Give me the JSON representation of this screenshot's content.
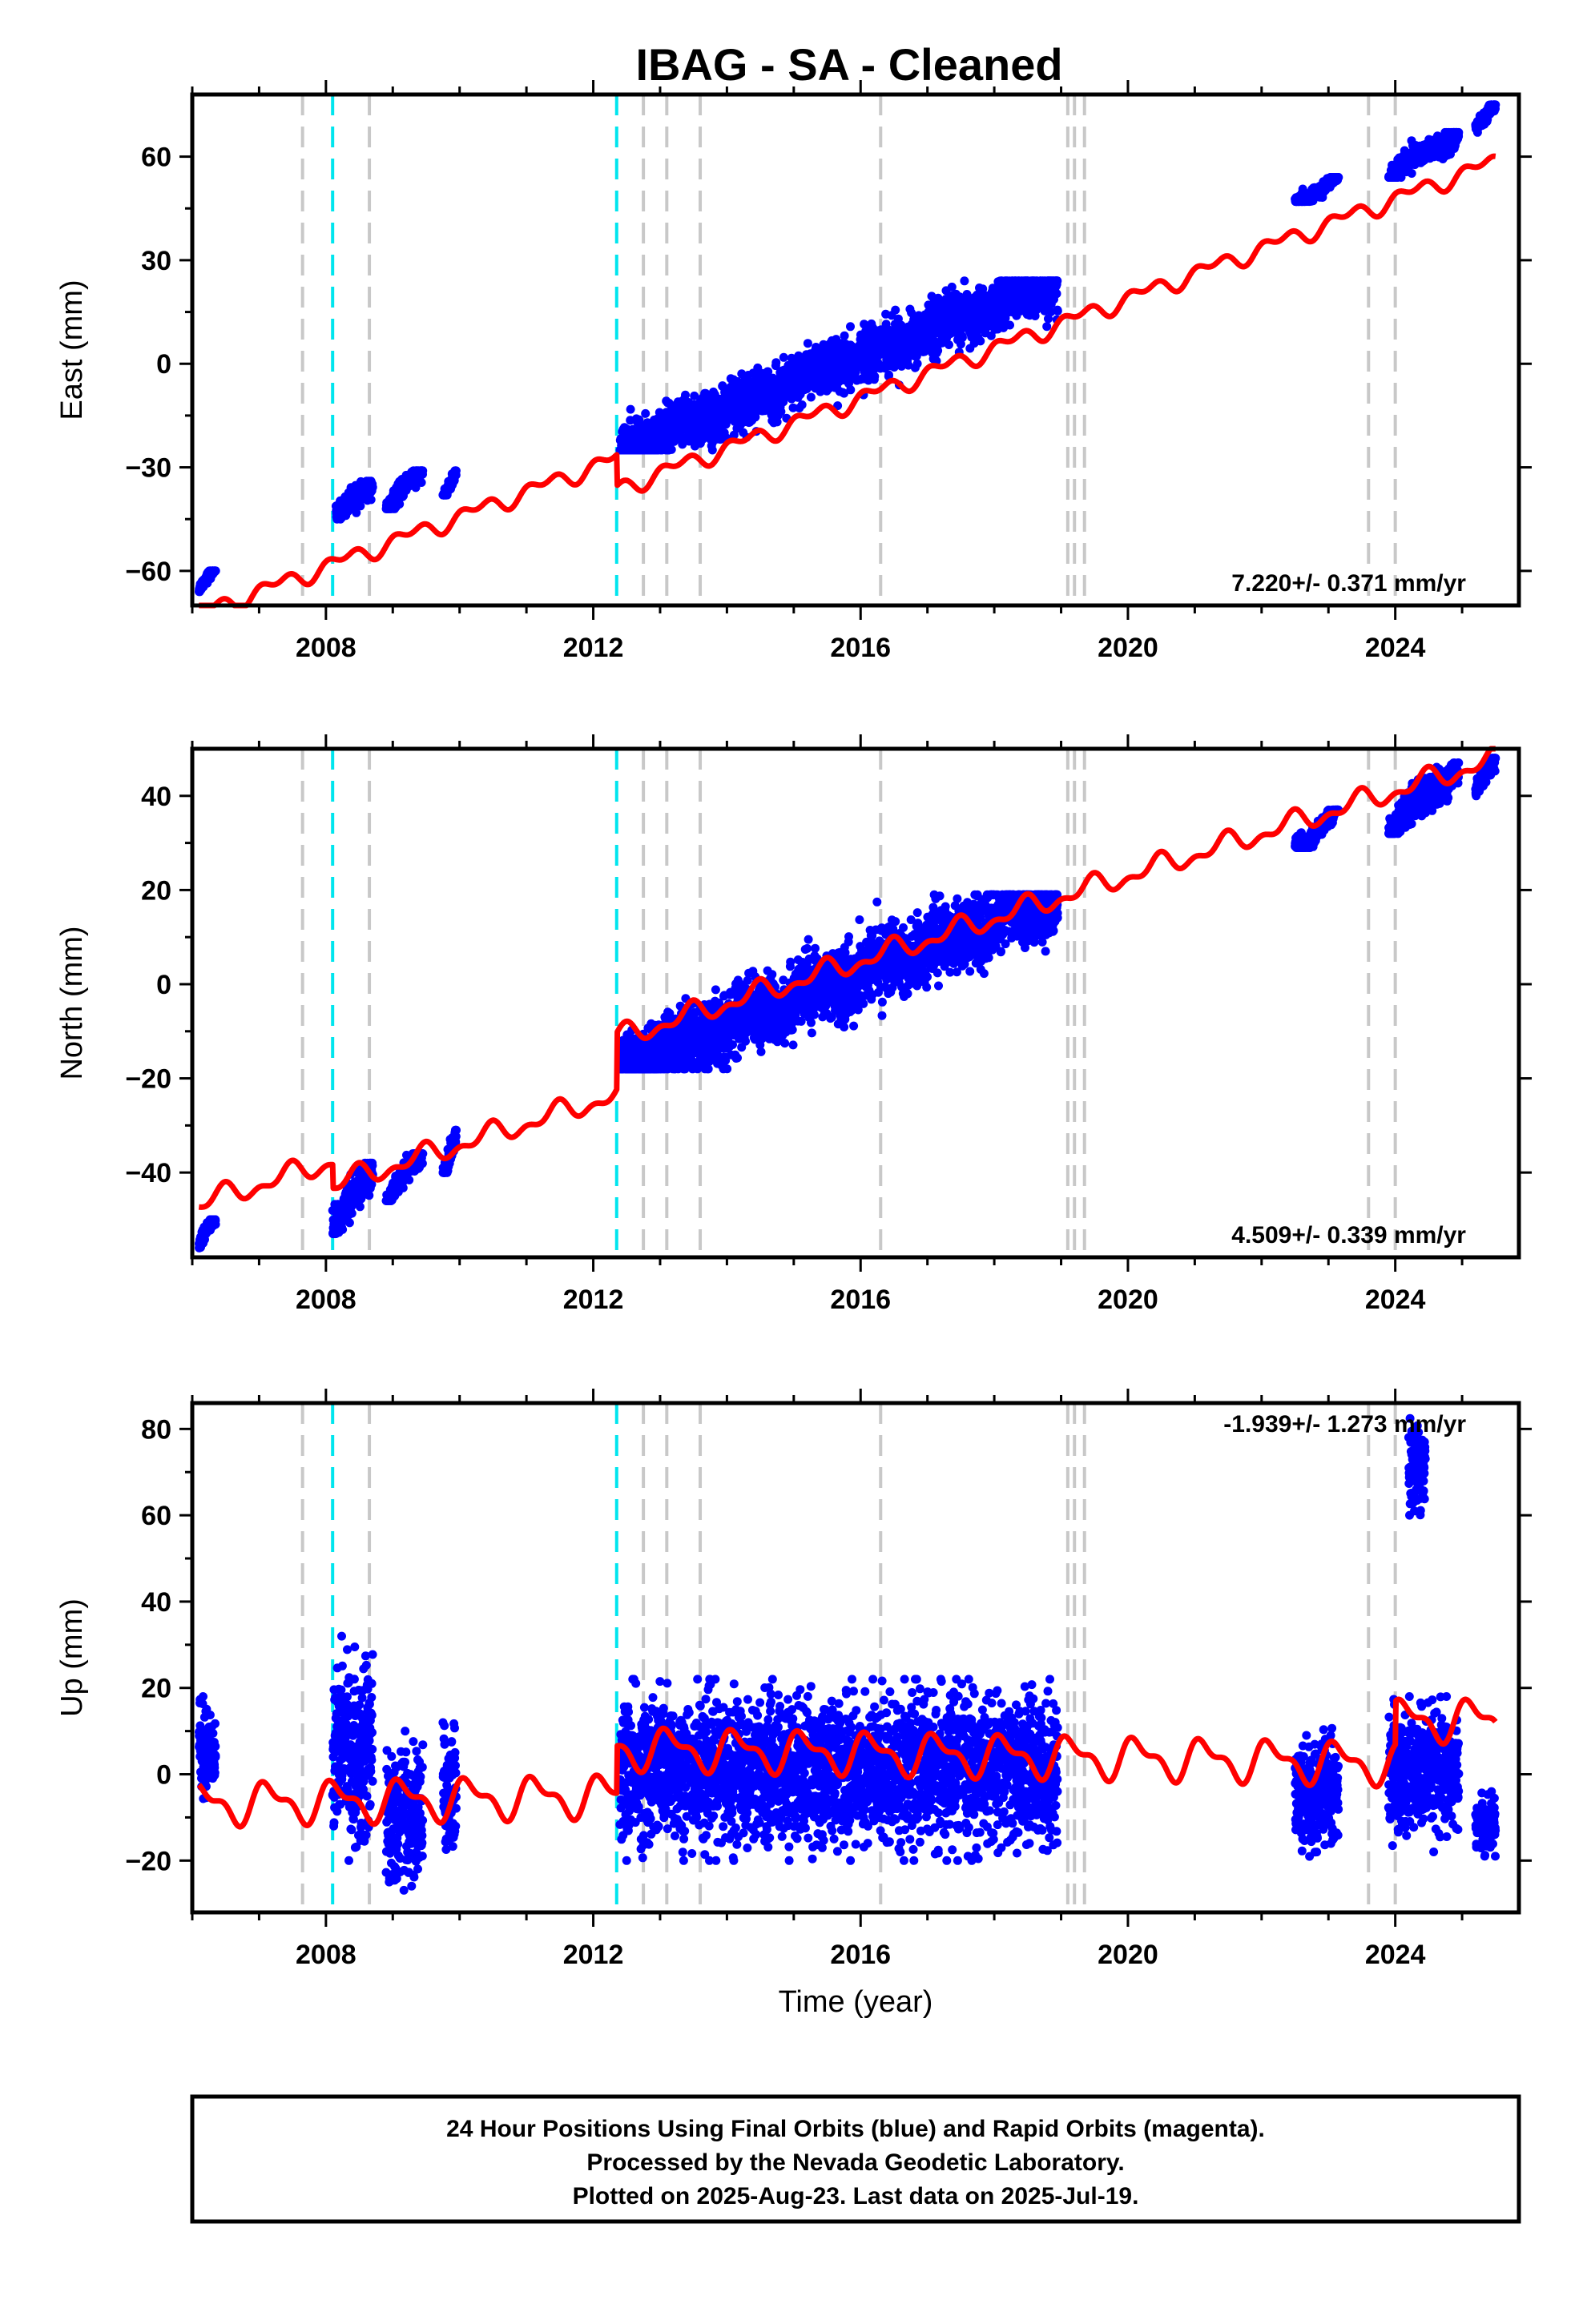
{
  "title": "IBAG  - SA - Cleaned",
  "footer": {
    "lines": [
      "24 Hour Positions Using Final Orbits (blue) and Rapid Orbits (magenta).",
      "Processed by the Nevada Geodetic Laboratory.",
      "Plotted on 2025-Aug-23. Last data on 2025-Jul-19."
    ]
  },
  "colors": {
    "data_points": "#0000ff",
    "model_fit": "#ff0000",
    "equipment_change": "#c8c8c8",
    "antenna_change": "#00e5ee"
  },
  "chart_data": [
    {
      "type": "scatter",
      "name": "east",
      "ylabel": "East (mm)",
      "xlabel": "",
      "xlim": [
        2006.0,
        2025.85
      ],
      "ylim": [
        -70,
        78
      ],
      "yticks": [
        -60,
        -30,
        0,
        30,
        60
      ],
      "xticks": [
        2008,
        2012,
        2016,
        2020,
        2024
      ],
      "rate_label": "7.220+/- 0.371 mm/yr",
      "rate": 7.22,
      "offsets": [
        {
          "year": 2012.35,
          "step": -10
        }
      ],
      "segments": [
        {
          "x": [
            2006.1,
            2006.35
          ],
          "y": [
            -66,
            -60
          ]
        },
        {
          "x": [
            2008.15,
            2008.7
          ],
          "y": [
            -45,
            -34
          ]
        },
        {
          "x": [
            2008.9,
            2009.45
          ],
          "y": [
            -42,
            -31
          ]
        },
        {
          "x": [
            2009.75,
            2009.95
          ],
          "y": [
            -38,
            -31
          ]
        },
        {
          "x": [
            2012.4,
            2018.95
          ],
          "y": [
            -25,
            24
          ]
        },
        {
          "x": [
            2022.5,
            2023.15
          ],
          "y": [
            47,
            54
          ]
        },
        {
          "x": [
            2023.9,
            2024.95
          ],
          "y": [
            54,
            67
          ]
        },
        {
          "x": [
            2025.2,
            2025.5
          ],
          "y": [
            67,
            75
          ]
        }
      ]
    },
    {
      "type": "scatter",
      "name": "north",
      "ylabel": "North (mm)",
      "xlabel": "",
      "xlim": [
        2006.0,
        2025.85
      ],
      "ylim": [
        -58,
        50
      ],
      "yticks": [
        -40,
        -20,
        0,
        20,
        40
      ],
      "xticks": [
        2008,
        2012,
        2016,
        2020,
        2024
      ],
      "rate_label": "4.509+/- 0.339 mm/yr",
      "rate": 4.509,
      "offsets": [
        {
          "year": 2008.1,
          "step": -5
        },
        {
          "year": 2012.35,
          "step": 12
        }
      ],
      "segments": [
        {
          "x": [
            2006.1,
            2006.35
          ],
          "y": [
            -56,
            -50
          ]
        },
        {
          "x": [
            2008.1,
            2008.7
          ],
          "y": [
            -53,
            -38
          ]
        },
        {
          "x": [
            2008.9,
            2009.45
          ],
          "y": [
            -46,
            -36
          ]
        },
        {
          "x": [
            2009.75,
            2009.95
          ],
          "y": [
            -40,
            -31
          ]
        },
        {
          "x": [
            2012.4,
            2018.95
          ],
          "y": [
            -18,
            19
          ]
        },
        {
          "x": [
            2022.5,
            2023.15
          ],
          "y": [
            29,
            37
          ]
        },
        {
          "x": [
            2023.9,
            2024.95
          ],
          "y": [
            32,
            47
          ]
        },
        {
          "x": [
            2025.2,
            2025.5
          ],
          "y": [
            40,
            48
          ]
        }
      ]
    },
    {
      "type": "scatter",
      "name": "up",
      "ylabel": "Up (mm)",
      "xlabel": "Time (year)",
      "xlim": [
        2006.0,
        2025.85
      ],
      "ylim": [
        -32,
        86
      ],
      "yticks": [
        -20,
        0,
        20,
        40,
        60,
        80
      ],
      "xticks": [
        2008,
        2012,
        2016,
        2020,
        2024
      ],
      "rate_label": "-1.939+/- 1.273 mm/yr",
      "rate": -1.939,
      "offsets": [
        {
          "year": 2012.35,
          "step": 12
        },
        {
          "year": 2024.0,
          "step": 14
        }
      ],
      "segments": [
        {
          "x": [
            2006.1,
            2006.35
          ],
          "y": [
            -6,
            18
          ]
        },
        {
          "x": [
            2008.1,
            2008.7
          ],
          "y": [
            -20,
            32
          ]
        },
        {
          "x": [
            2008.9,
            2009.45
          ],
          "y": [
            -29,
            10
          ]
        },
        {
          "x": [
            2009.75,
            2009.95
          ],
          "y": [
            -23,
            16
          ]
        },
        {
          "x": [
            2012.4,
            2018.95
          ],
          "y": [
            -20,
            22
          ]
        },
        {
          "x": [
            2022.5,
            2023.15
          ],
          "y": [
            -21,
            12
          ]
        },
        {
          "x": [
            2023.9,
            2024.95
          ],
          "y": [
            -18,
            18
          ]
        },
        {
          "x": [
            2024.2,
            2024.45
          ],
          "y": [
            60,
            83
          ]
        },
        {
          "x": [
            2025.2,
            2025.5
          ],
          "y": [
            -19,
            -4
          ]
        }
      ]
    }
  ],
  "event_lines": {
    "equipment_change_years": [
      2007.65,
      2008.65,
      2012.75,
      2013.1,
      2013.6,
      2016.3,
      2019.1,
      2019.2,
      2019.35,
      2023.6,
      2024.0
    ],
    "antenna_change_years": [
      2008.1,
      2012.35
    ]
  }
}
